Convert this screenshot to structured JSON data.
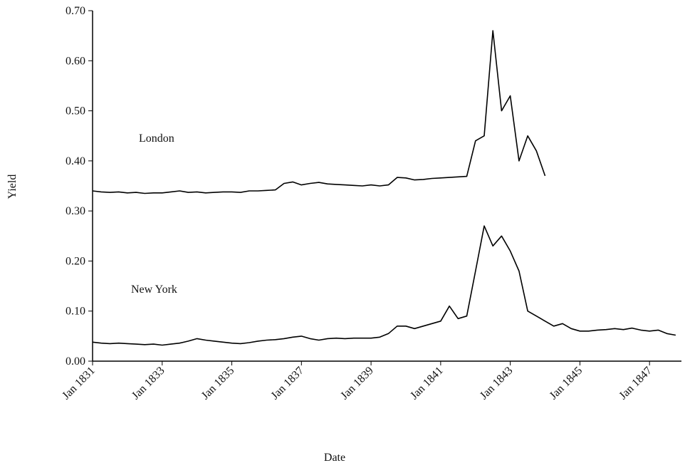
{
  "chart_data": {
    "type": "line",
    "x_label": "Date",
    "y_label": "Yield",
    "annotations": [
      "London",
      "New York"
    ],
    "x": [
      "1831-01",
      "1831-04",
      "1831-07",
      "1831-10",
      "1832-01",
      "1832-04",
      "1832-07",
      "1832-10",
      "1833-01",
      "1833-04",
      "1833-07",
      "1833-10",
      "1834-01",
      "1834-04",
      "1834-07",
      "1834-10",
      "1835-01",
      "1835-04",
      "1835-07",
      "1835-10",
      "1836-01",
      "1836-04",
      "1836-07",
      "1836-10",
      "1837-01",
      "1837-04",
      "1837-07",
      "1837-10",
      "1838-01",
      "1838-04",
      "1838-07",
      "1838-10",
      "1839-01",
      "1839-04",
      "1839-07",
      "1839-10",
      "1840-01",
      "1840-04",
      "1840-07",
      "1840-10",
      "1841-01",
      "1841-04",
      "1841-07",
      "1841-10",
      "1842-01",
      "1842-04",
      "1842-07",
      "1842-10",
      "1843-01",
      "1843-04",
      "1843-07",
      "1843-10",
      "1844-01",
      "1844-04",
      "1844-07",
      "1844-10",
      "1845-01",
      "1845-04",
      "1845-07",
      "1845-10",
      "1846-01",
      "1846-04",
      "1846-07",
      "1846-10",
      "1847-01",
      "1847-04",
      "1847-07",
      "1847-10"
    ],
    "series": [
      {
        "name": "London",
        "color": "#000000",
        "values": [
          0.34,
          0.338,
          0.337,
          0.338,
          0.336,
          0.337,
          0.335,
          0.336,
          0.336,
          0.338,
          0.34,
          0.337,
          0.338,
          0.336,
          0.337,
          0.338,
          0.338,
          0.337,
          0.34,
          0.34,
          0.341,
          0.342,
          0.355,
          0.358,
          0.352,
          0.355,
          0.357,
          0.354,
          0.353,
          0.352,
          0.351,
          0.35,
          0.352,
          0.35,
          0.352,
          0.367,
          0.366,
          0.362,
          0.363,
          0.365,
          0.366,
          0.367,
          0.368,
          0.369,
          0.44,
          0.45,
          0.66,
          0.5,
          0.53,
          0.4,
          0.45,
          0.42,
          0.37,
          null,
          null,
          null,
          null,
          null,
          null,
          null,
          null,
          null,
          null,
          null,
          null,
          null,
          null,
          null
        ]
      },
      {
        "name": "New York",
        "color": "#000000",
        "values": [
          0.038,
          0.036,
          0.035,
          0.036,
          0.035,
          0.034,
          0.033,
          0.034,
          0.032,
          0.034,
          0.036,
          0.04,
          0.045,
          0.042,
          0.04,
          0.038,
          0.036,
          0.035,
          0.037,
          0.04,
          0.042,
          0.043,
          0.045,
          0.048,
          0.05,
          0.045,
          0.042,
          0.045,
          0.046,
          0.045,
          0.046,
          0.046,
          0.046,
          0.048,
          0.055,
          0.07,
          0.07,
          0.065,
          0.07,
          0.075,
          0.08,
          0.11,
          0.085,
          0.09,
          0.18,
          0.27,
          0.23,
          0.25,
          0.22,
          0.18,
          0.1,
          0.09,
          0.08,
          0.07,
          0.075,
          0.065,
          0.06,
          0.06,
          0.062,
          0.063,
          0.065,
          0.063,
          0.066,
          0.062,
          0.06,
          0.062,
          0.055,
          0.052
        ]
      }
    ],
    "xlim": [
      "1831-01",
      "1847-12"
    ],
    "xticks": [
      {
        "value": "1831-01",
        "label": "Jan 1831"
      },
      {
        "value": "1833-01",
        "label": "Jan 1833"
      },
      {
        "value": "1835-01",
        "label": "Jan 1835"
      },
      {
        "value": "1837-01",
        "label": "Jan 1837"
      },
      {
        "value": "1839-01",
        "label": "Jan 1839"
      },
      {
        "value": "1841-01",
        "label": "Jan 1841"
      },
      {
        "value": "1843-01",
        "label": "Jan 1843"
      },
      {
        "value": "1845-01",
        "label": "Jan 1845"
      },
      {
        "value": "1847-01",
        "label": "Jan 1847"
      }
    ],
    "ylim": [
      0,
      0.7
    ],
    "yticks": [
      {
        "value": 0,
        "label": "0.00"
      },
      {
        "value": 0.1,
        "label": "0.10"
      },
      {
        "value": 0.2,
        "label": "0.20"
      },
      {
        "value": 0.3,
        "label": "0.30"
      },
      {
        "value": 0.4,
        "label": "0.40"
      },
      {
        "value": 0.5,
        "label": "0.50"
      },
      {
        "value": 0.6,
        "label": "0.60"
      },
      {
        "value": 0.7,
        "label": "0.70"
      }
    ],
    "grid": false
  }
}
